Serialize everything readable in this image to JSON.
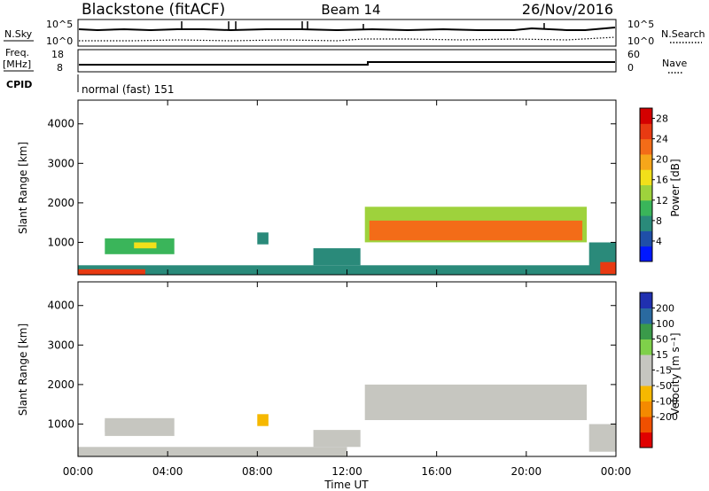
{
  "header": {
    "station": "Blackstone (fitACF)",
    "beam": "Beam 14",
    "date": "26/Nov/2016"
  },
  "summary": {
    "nsky_label": "N.Sky",
    "nsky_ticks": [
      "10^5",
      "10^0"
    ],
    "nsearch_label": "N.Search",
    "nsearch_ticks": [
      "10^5",
      "10^0"
    ],
    "freq_label_1": "Freq.",
    "freq_label_2": "[MHz]",
    "freq_ticks": [
      "18",
      "8"
    ],
    "nave_label": "Nave",
    "nave_ticks": [
      "60",
      "0"
    ],
    "cpid_label": "CPID",
    "cpid_text": "normal (fast) 151"
  },
  "colors": {
    "power_scale": [
      "#0018ff",
      "#1f4fa8",
      "#2a8a7a",
      "#3ab55a",
      "#9ed23c",
      "#f2e01a",
      "#f6a61a",
      "#f36c18",
      "#e83a12",
      "#d40000"
    ],
    "velocity_scale": [
      "#e00000",
      "#f05000",
      "#f48a00",
      "#f6b800",
      "#c6c6c0",
      "#c6c6c0",
      "#7fd04a",
      "#3a9a4a",
      "#2a6aa0",
      "#2030b0"
    ]
  },
  "chart_data": [
    {
      "type": "heatmap",
      "title": "Power",
      "ylabel": "Slant Range [km]",
      "xlabel": "Time UT",
      "x_ticks": [
        "00:00",
        "04:00",
        "08:00",
        "12:00",
        "16:00",
        "20:00",
        "00:00"
      ],
      "xlim_hours": [
        0,
        24
      ],
      "ylim": [
        180,
        4600
      ],
      "y_ticks": [
        1000,
        2000,
        3000,
        4000
      ],
      "colorbar": {
        "label": "Power [dB]",
        "ticks": [
          "4",
          "8",
          "12",
          "16",
          "20",
          "24",
          "28"
        ],
        "range": [
          0,
          30
        ]
      },
      "regions": [
        {
          "start": 0.0,
          "end": 24.0,
          "r_low": 180,
          "r_high": 420,
          "value": 8
        },
        {
          "start": 0.0,
          "end": 3.0,
          "r_low": 180,
          "r_high": 320,
          "value": 26
        },
        {
          "start": 1.2,
          "end": 4.3,
          "r_low": 700,
          "r_high": 1100,
          "value": 9
        },
        {
          "start": 2.5,
          "end": 3.5,
          "r_low": 850,
          "r_high": 1000,
          "value": 15
        },
        {
          "start": 8.0,
          "end": 8.5,
          "r_low": 950,
          "r_high": 1250,
          "value": 8
        },
        {
          "start": 10.5,
          "end": 12.6,
          "r_low": 420,
          "r_high": 850,
          "value": 8
        },
        {
          "start": 12.8,
          "end": 22.7,
          "r_low": 1000,
          "r_high": 1900,
          "value": 14
        },
        {
          "start": 13.0,
          "end": 22.5,
          "r_low": 1050,
          "r_high": 1550,
          "value": 22
        },
        {
          "start": 22.8,
          "end": 24.0,
          "r_low": 300,
          "r_high": 1000,
          "value": 8
        },
        {
          "start": 23.3,
          "end": 24.0,
          "r_low": 200,
          "r_high": 500,
          "value": 26
        }
      ]
    },
    {
      "type": "heatmap",
      "title": "Velocity",
      "ylabel": "Slant Range [km]",
      "xlabel": "Time UT",
      "x_ticks": [
        "00:00",
        "04:00",
        "08:00",
        "12:00",
        "16:00",
        "20:00",
        "00:00"
      ],
      "xlim_hours": [
        0,
        24
      ],
      "ylim": [
        180,
        4600
      ],
      "y_ticks": [
        1000,
        2000,
        3000,
        4000
      ],
      "colorbar": {
        "label": "Velocity [m s⁻¹]",
        "ticks": [
          "200",
          "100",
          "50",
          "15",
          "-15",
          "-50",
          "-100",
          "-200"
        ],
        "range": [
          -250,
          250
        ]
      },
      "regions": [
        {
          "start": 0.0,
          "end": 12.0,
          "r_low": 180,
          "r_high": 420,
          "value": -40
        },
        {
          "start": 1.2,
          "end": 4.3,
          "r_low": 700,
          "r_high": 1150,
          "value": -30
        },
        {
          "start": 1.2,
          "end": 2.5,
          "r_low": 800,
          "r_high": 1100,
          "value": 0
        },
        {
          "start": 8.0,
          "end": 8.5,
          "r_low": 950,
          "r_high": 1250,
          "value": -60
        },
        {
          "start": 10.5,
          "end": 12.6,
          "r_low": 420,
          "r_high": 850,
          "value": 0
        },
        {
          "start": 12.8,
          "end": 22.7,
          "r_low": 1100,
          "r_high": 2000,
          "value": 0
        },
        {
          "start": 22.8,
          "end": 24.0,
          "r_low": 300,
          "r_high": 1000,
          "value": 0
        }
      ]
    }
  ]
}
